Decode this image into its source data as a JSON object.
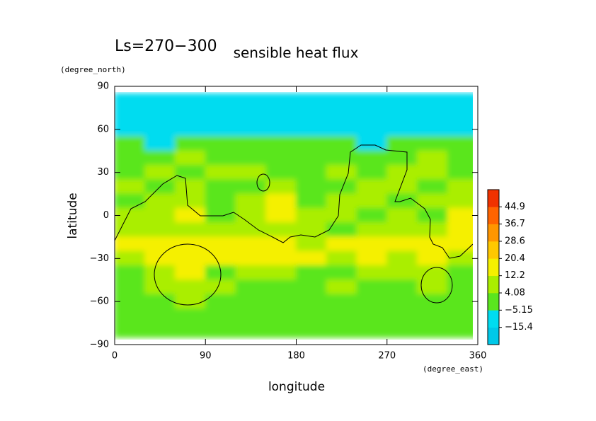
{
  "chart_data": {
    "type": "contour",
    "title": "sensible heat flux",
    "subtitle": "Ls=270−300",
    "xlabel": "longitude",
    "ylabel": "latitude",
    "xunit": "(degree_east)",
    "yunit": "(degree_north)",
    "xlim": [
      0,
      360
    ],
    "ylim": [
      -90,
      90
    ],
    "xticks": [
      0,
      90,
      180,
      270,
      360
    ],
    "yticks": [
      90,
      60,
      30,
      0,
      {
        "value": -30,
        "label": "−30"
      },
      {
        "value": -60,
        "label": "−60"
      },
      {
        "value": -90,
        "label": "−90"
      }
    ],
    "x": [
      15,
      45,
      75,
      105,
      135,
      165,
      195,
      225,
      255,
      285,
      315,
      345
    ],
    "y": [
      80,
      70,
      60,
      50,
      40,
      30,
      20,
      10,
      0,
      -10,
      -20,
      -30,
      -40,
      -50,
      -60,
      -70,
      -80
    ],
    "z": [
      [
        -10,
        -10,
        -10,
        -10,
        -10,
        -10,
        -10,
        -10,
        -10,
        -10,
        -10,
        -10
      ],
      [
        -10,
        -10,
        -10,
        -10,
        -10,
        -10,
        -10,
        -10,
        -10,
        -10,
        -10,
        -10
      ],
      [
        -10,
        -10,
        -10,
        -10,
        -10,
        -10,
        -10,
        -10,
        -10,
        -10,
        -10,
        -10
      ],
      [
        2,
        -10,
        2,
        2,
        2,
        2,
        2,
        2,
        -10,
        2,
        2,
        2
      ],
      [
        2,
        2,
        7,
        2,
        2,
        2,
        2,
        2,
        2,
        2,
        7,
        2
      ],
      [
        2,
        7,
        2,
        7,
        7,
        2,
        2,
        7,
        2,
        7,
        7,
        2
      ],
      [
        7,
        2,
        7,
        2,
        2,
        7,
        2,
        2,
        7,
        7,
        2,
        7
      ],
      [
        2,
        7,
        7,
        2,
        7,
        14,
        2,
        7,
        7,
        2,
        7,
        7
      ],
      [
        7,
        7,
        14,
        2,
        7,
        14,
        7,
        7,
        2,
        7,
        2,
        14
      ],
      [
        7,
        7,
        7,
        7,
        7,
        7,
        7,
        2,
        7,
        7,
        7,
        14
      ],
      [
        14,
        14,
        14,
        14,
        14,
        14,
        7,
        14,
        14,
        14,
        14,
        14
      ],
      [
        7,
        14,
        14,
        14,
        14,
        14,
        14,
        7,
        14,
        7,
        14,
        7
      ],
      [
        2,
        7,
        14,
        2,
        7,
        7,
        2,
        2,
        7,
        7,
        7,
        2
      ],
      [
        2,
        7,
        7,
        7,
        2,
        2,
        2,
        7,
        2,
        2,
        7,
        2
      ],
      [
        2,
        2,
        7,
        2,
        2,
        2,
        2,
        2,
        2,
        2,
        2,
        2
      ],
      [
        2,
        2,
        2,
        2,
        2,
        2,
        2,
        2,
        2,
        2,
        2,
        2
      ],
      [
        2,
        2,
        2,
        2,
        2,
        2,
        2,
        2,
        2,
        2,
        2,
        2
      ]
    ],
    "levels": [
      {
        "value": -15.4,
        "label": "−15.4"
      },
      {
        "value": -5.15,
        "label": "−5.15"
      },
      4.08,
      12.2,
      20.4,
      28.6,
      36.7,
      44.9
    ],
    "colors": [
      "#00c8e8",
      "#00dcf0",
      "#5ae61e",
      "#aaee00",
      "#f5f000",
      "#ffc800",
      "#ff9600",
      "#ff6400",
      "#f03200"
    ]
  }
}
